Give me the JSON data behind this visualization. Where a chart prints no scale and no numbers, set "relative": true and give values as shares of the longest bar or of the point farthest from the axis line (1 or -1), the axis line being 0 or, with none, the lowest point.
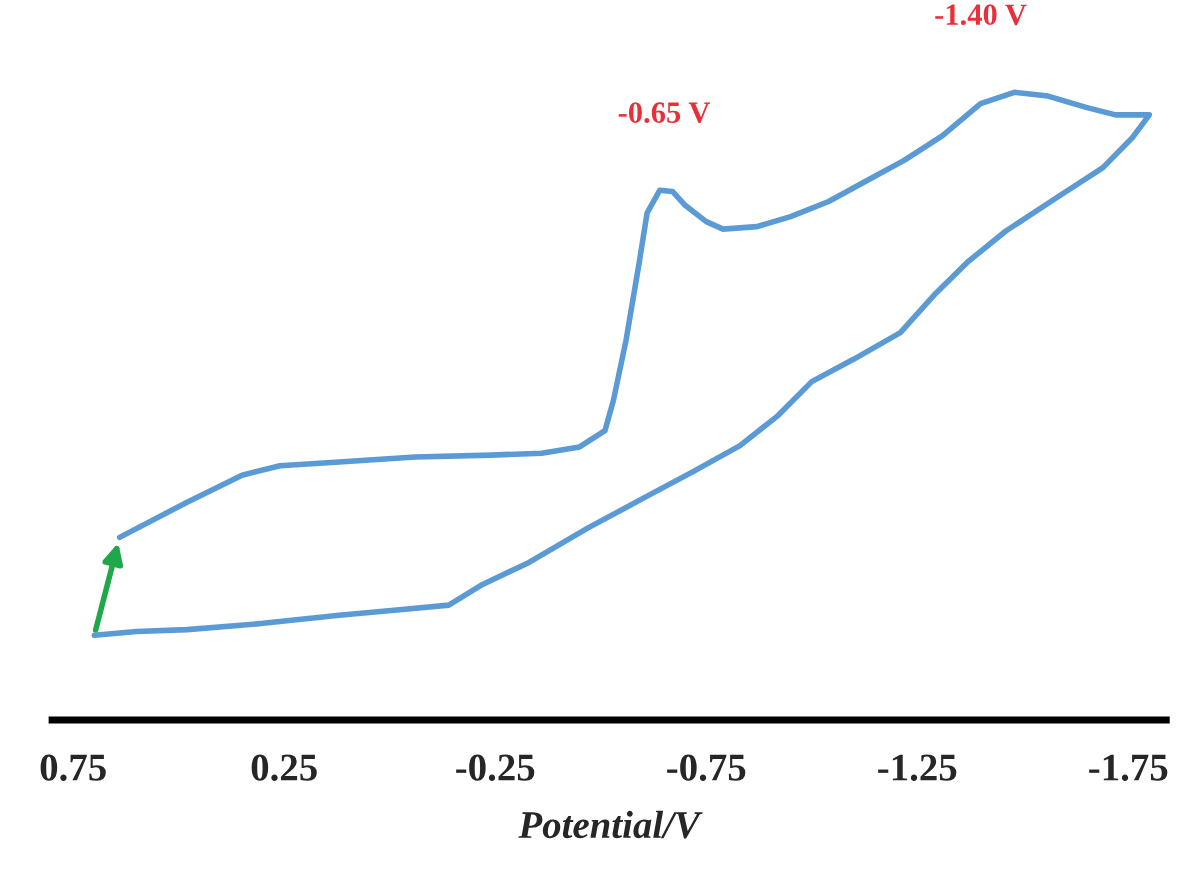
{
  "chart_data": {
    "type": "line",
    "relative": true,
    "xlabel": "Potential/V",
    "xlim": [
      0.8,
      -1.84
    ],
    "xticks": [
      0.75,
      0.25,
      -0.25,
      -0.75,
      -1.25,
      -1.75
    ],
    "series": [
      {
        "color": "#5b9bd5",
        "x": [
          0.64,
          0.48,
          0.35,
          0.26,
          0.12,
          -0.06,
          -0.24,
          -0.36,
          -0.45,
          -0.51,
          -0.53,
          -0.56,
          -0.59,
          -0.61,
          -0.64,
          -0.67,
          -0.7,
          -0.75,
          -0.79,
          -0.87,
          -0.95,
          -1.04,
          -1.13,
          -1.22,
          -1.31,
          -1.4,
          -1.48,
          -1.56,
          -1.65,
          -1.72,
          -1.8,
          -1.76,
          -1.69,
          -1.58,
          -1.46,
          -1.37,
          -1.29,
          -1.21,
          -1.1,
          -1.0,
          -0.92,
          -0.83,
          -0.72,
          -0.6,
          -0.47,
          -0.33,
          -0.22,
          -0.14,
          -0.03,
          0.12,
          0.3,
          0.48,
          0.6,
          0.7
        ],
        "values": [
          0.291,
          0.347,
          0.39,
          0.405,
          0.411,
          0.419,
          0.422,
          0.425,
          0.435,
          0.461,
          0.509,
          0.605,
          0.724,
          0.808,
          0.844,
          0.842,
          0.82,
          0.794,
          0.782,
          0.786,
          0.802,
          0.826,
          0.859,
          0.892,
          0.931,
          0.982,
          1.0,
          0.994,
          0.976,
          0.964,
          0.964,
          0.928,
          0.88,
          0.832,
          0.779,
          0.73,
          0.677,
          0.617,
          0.575,
          0.539,
          0.485,
          0.437,
          0.396,
          0.353,
          0.306,
          0.251,
          0.216,
          0.183,
          0.176,
          0.167,
          0.154,
          0.144,
          0.141,
          0.135
        ]
      }
    ],
    "annotations": [
      {
        "text": "-0.65 V",
        "x": -0.65,
        "y": 0.844
      },
      {
        "text": "-1.40 V",
        "x": -1.4,
        "y": 1.0
      }
    ],
    "grid": false,
    "legend": false,
    "marker": "none",
    "line_style": "solid"
  }
}
